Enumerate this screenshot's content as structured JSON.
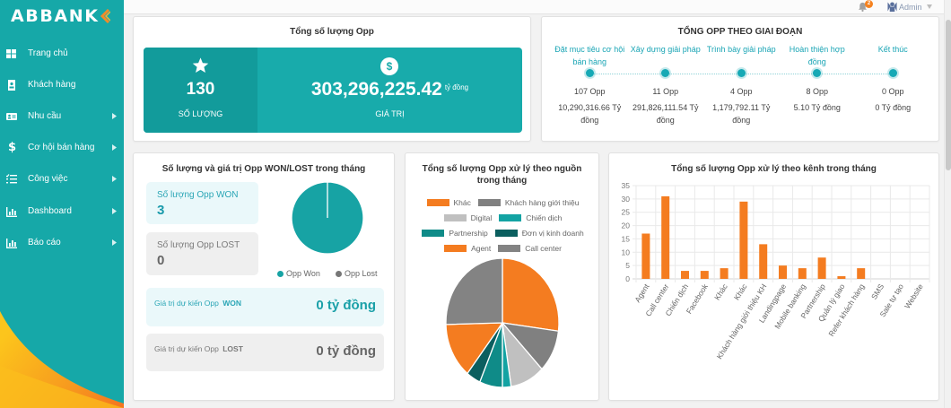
{
  "sidebar": {
    "logo": "ABBANK",
    "items": [
      {
        "label": "Trang chủ",
        "icon": "grid-icon",
        "has_submenu": false
      },
      {
        "label": "Khách hàng",
        "icon": "contact-book-icon",
        "has_submenu": false
      },
      {
        "label": "Nhu cầu",
        "icon": "id-card-icon",
        "has_submenu": true
      },
      {
        "label": "Cơ hội bán hàng",
        "icon": "dollar-icon",
        "has_submenu": true
      },
      {
        "label": "Công việc",
        "icon": "task-list-icon",
        "has_submenu": true
      },
      {
        "label": "Dashboard",
        "icon": "bar-chart-icon",
        "has_submenu": true
      },
      {
        "label": "Báo cáo",
        "icon": "bar-chart-icon",
        "has_submenu": true
      }
    ]
  },
  "topbar": {
    "notification_count": "2",
    "user": "Admin"
  },
  "total_opp": {
    "title": "Tổng số lượng Opp",
    "count": "130",
    "count_label": "SỐ LƯỢNG",
    "value": "303,296,225.42",
    "value_unit": "tỷ đồng",
    "value_label": "GIÁ TRỊ"
  },
  "stages": {
    "title": "TỔNG OPP THEO GIAI ĐOẠN",
    "items": [
      {
        "name": "Đặt mục tiêu cơ hội bán hàng",
        "count": "107 Opp",
        "value": "10,290,316.66 Tỷ đồng"
      },
      {
        "name": "Xây dựng giải pháp",
        "count": "11 Opp",
        "value": "291,826,111.54 Tỷ đồng"
      },
      {
        "name": "Trình bày giải pháp",
        "count": "4 Opp",
        "value": "1,179,792.11 Tỷ đồng"
      },
      {
        "name": "Hoàn thiện hợp đồng",
        "count": "8 Opp",
        "value": "5.10 Tỷ đồng"
      },
      {
        "name": "Kết thúc",
        "count": "0 Opp",
        "value": "0 Tỷ đồng"
      }
    ]
  },
  "won_lost": {
    "won_count_label": "Số lượng Opp WON",
    "won_count": "3",
    "lost_count_label": "Số lượng Opp LOST",
    "lost_count": "0",
    "won_value_label": "Giá trị dự kiến Opp",
    "won_value_label_strong": "WON",
    "won_value": "0 tỷ đồng",
    "lost_value_label": "Giá trị dự kiến Opp",
    "lost_value_label_strong": "LOST",
    "lost_value": "0 tỷ đồng"
  },
  "chart_data": [
    {
      "type": "pie",
      "title": "Số lượng và giá trị Opp WON/LOST trong tháng",
      "labels": [
        "Opp Won",
        "Opp Lost"
      ],
      "values": [
        3,
        0
      ],
      "colors": [
        "#17a3a4",
        "#777777"
      ],
      "legend": "bottom"
    },
    {
      "type": "pie",
      "title": "Tổng số lượng Opp xử lý theo nguồn trong tháng",
      "labels": [
        "Khác",
        "Khách hàng giới thiệu",
        "Digital",
        "Chiến dịch",
        "Partnership",
        "Đơn vị kinh doanh",
        "Agent",
        "Call center"
      ],
      "values": [
        33,
        13,
        12,
        3,
        8,
        5,
        17,
        31
      ],
      "colors": [
        "#f47c20",
        "#808080",
        "#c0c0c0",
        "#13a3a3",
        "#0f8b88",
        "#0b5f5f",
        "#f47c20",
        "#838383"
      ],
      "legend": "top"
    },
    {
      "type": "bar",
      "title": "Tổng số lượng Opp xử lý theo kênh trong tháng",
      "categories": [
        "Agent",
        "Call center",
        "Chiến dịch",
        "Facebook",
        "Khác",
        "Khác",
        "Khách hàng giới thiệu KH",
        "Landingpage",
        "Mobile banking",
        "Partnership",
        "Quản lý giao",
        "Refer khách hàng",
        "SMS",
        "Sale tự tạo",
        "Website"
      ],
      "values": [
        17,
        31,
        3,
        3,
        4,
        29,
        13,
        5,
        4,
        8,
        1,
        4,
        0,
        0,
        0
      ],
      "ylim": [
        0,
        35
      ],
      "yticks": [
        0,
        5,
        10,
        15,
        20,
        25,
        30,
        35
      ],
      "color": "#f47c20",
      "grid": true,
      "xlabel": "",
      "ylabel": ""
    }
  ]
}
